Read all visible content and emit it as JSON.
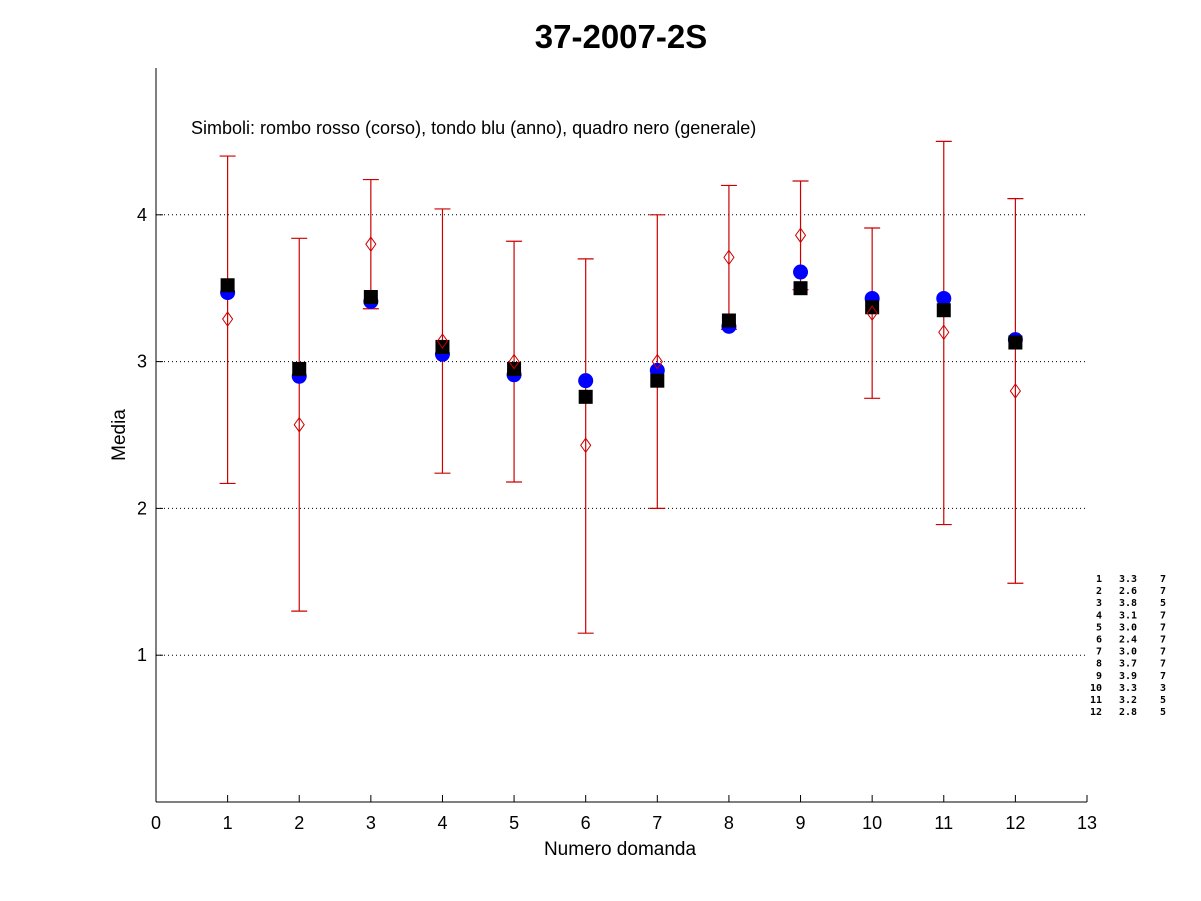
{
  "chart_data": {
    "type": "scatter",
    "title": "37-2007-2S",
    "xlabel": "Numero domanda",
    "ylabel": "Media",
    "xlim": [
      0,
      13
    ],
    "ylim": [
      0,
      5
    ],
    "x_ticks": [
      "0",
      "1",
      "2",
      "3",
      "4",
      "5",
      "6",
      "7",
      "8",
      "9",
      "10",
      "11",
      "12",
      "13"
    ],
    "y_ticks": [
      "1",
      "2",
      "3",
      "4"
    ],
    "grid": "horizontal dotted at y ticks",
    "annotation": "Simboli: rombo rosso (corso), tondo blu (anno), quadro nero (generale)",
    "x": [
      1,
      2,
      3,
      4,
      5,
      6,
      7,
      8,
      9,
      10,
      11,
      12
    ],
    "series": [
      {
        "marker": "diamond",
        "color": "#cc0000",
        "values": [
          3.29,
          2.57,
          3.8,
          3.14,
          3.0,
          2.43,
          3.0,
          3.71,
          3.86,
          3.33,
          3.2,
          2.8
        ],
        "error_low": [
          2.17,
          1.3,
          3.36,
          2.24,
          2.18,
          1.15,
          2.0,
          3.22,
          3.49,
          2.75,
          1.89,
          1.49
        ],
        "error_high": [
          4.4,
          3.84,
          4.24,
          4.04,
          3.82,
          3.7,
          4.0,
          4.2,
          4.23,
          3.91,
          4.5,
          4.11
        ]
      },
      {
        "marker": "circle",
        "color": "#0000ff",
        "values": [
          3.47,
          2.9,
          3.41,
          3.05,
          2.91,
          2.87,
          2.94,
          3.24,
          3.61,
          3.43,
          3.43,
          3.15
        ]
      },
      {
        "marker": "square",
        "color": "#000000",
        "values": [
          3.52,
          2.95,
          3.44,
          3.1,
          2.95,
          2.76,
          2.87,
          3.28,
          3.5,
          3.37,
          3.35,
          3.13
        ]
      }
    ],
    "side_table": [
      [
        "1",
        "3.3",
        "7"
      ],
      [
        "2",
        "2.6",
        "7"
      ],
      [
        "3",
        "3.8",
        "5"
      ],
      [
        "4",
        "3.1",
        "7"
      ],
      [
        "5",
        "3.0",
        "7"
      ],
      [
        "6",
        "2.4",
        "7"
      ],
      [
        "7",
        "3.0",
        "7"
      ],
      [
        "8",
        "3.7",
        "7"
      ],
      [
        "9",
        "3.9",
        "7"
      ],
      [
        "10",
        "3.3",
        "3"
      ],
      [
        "11",
        "3.2",
        "5"
      ],
      [
        "12",
        "2.8",
        "5"
      ]
    ]
  }
}
